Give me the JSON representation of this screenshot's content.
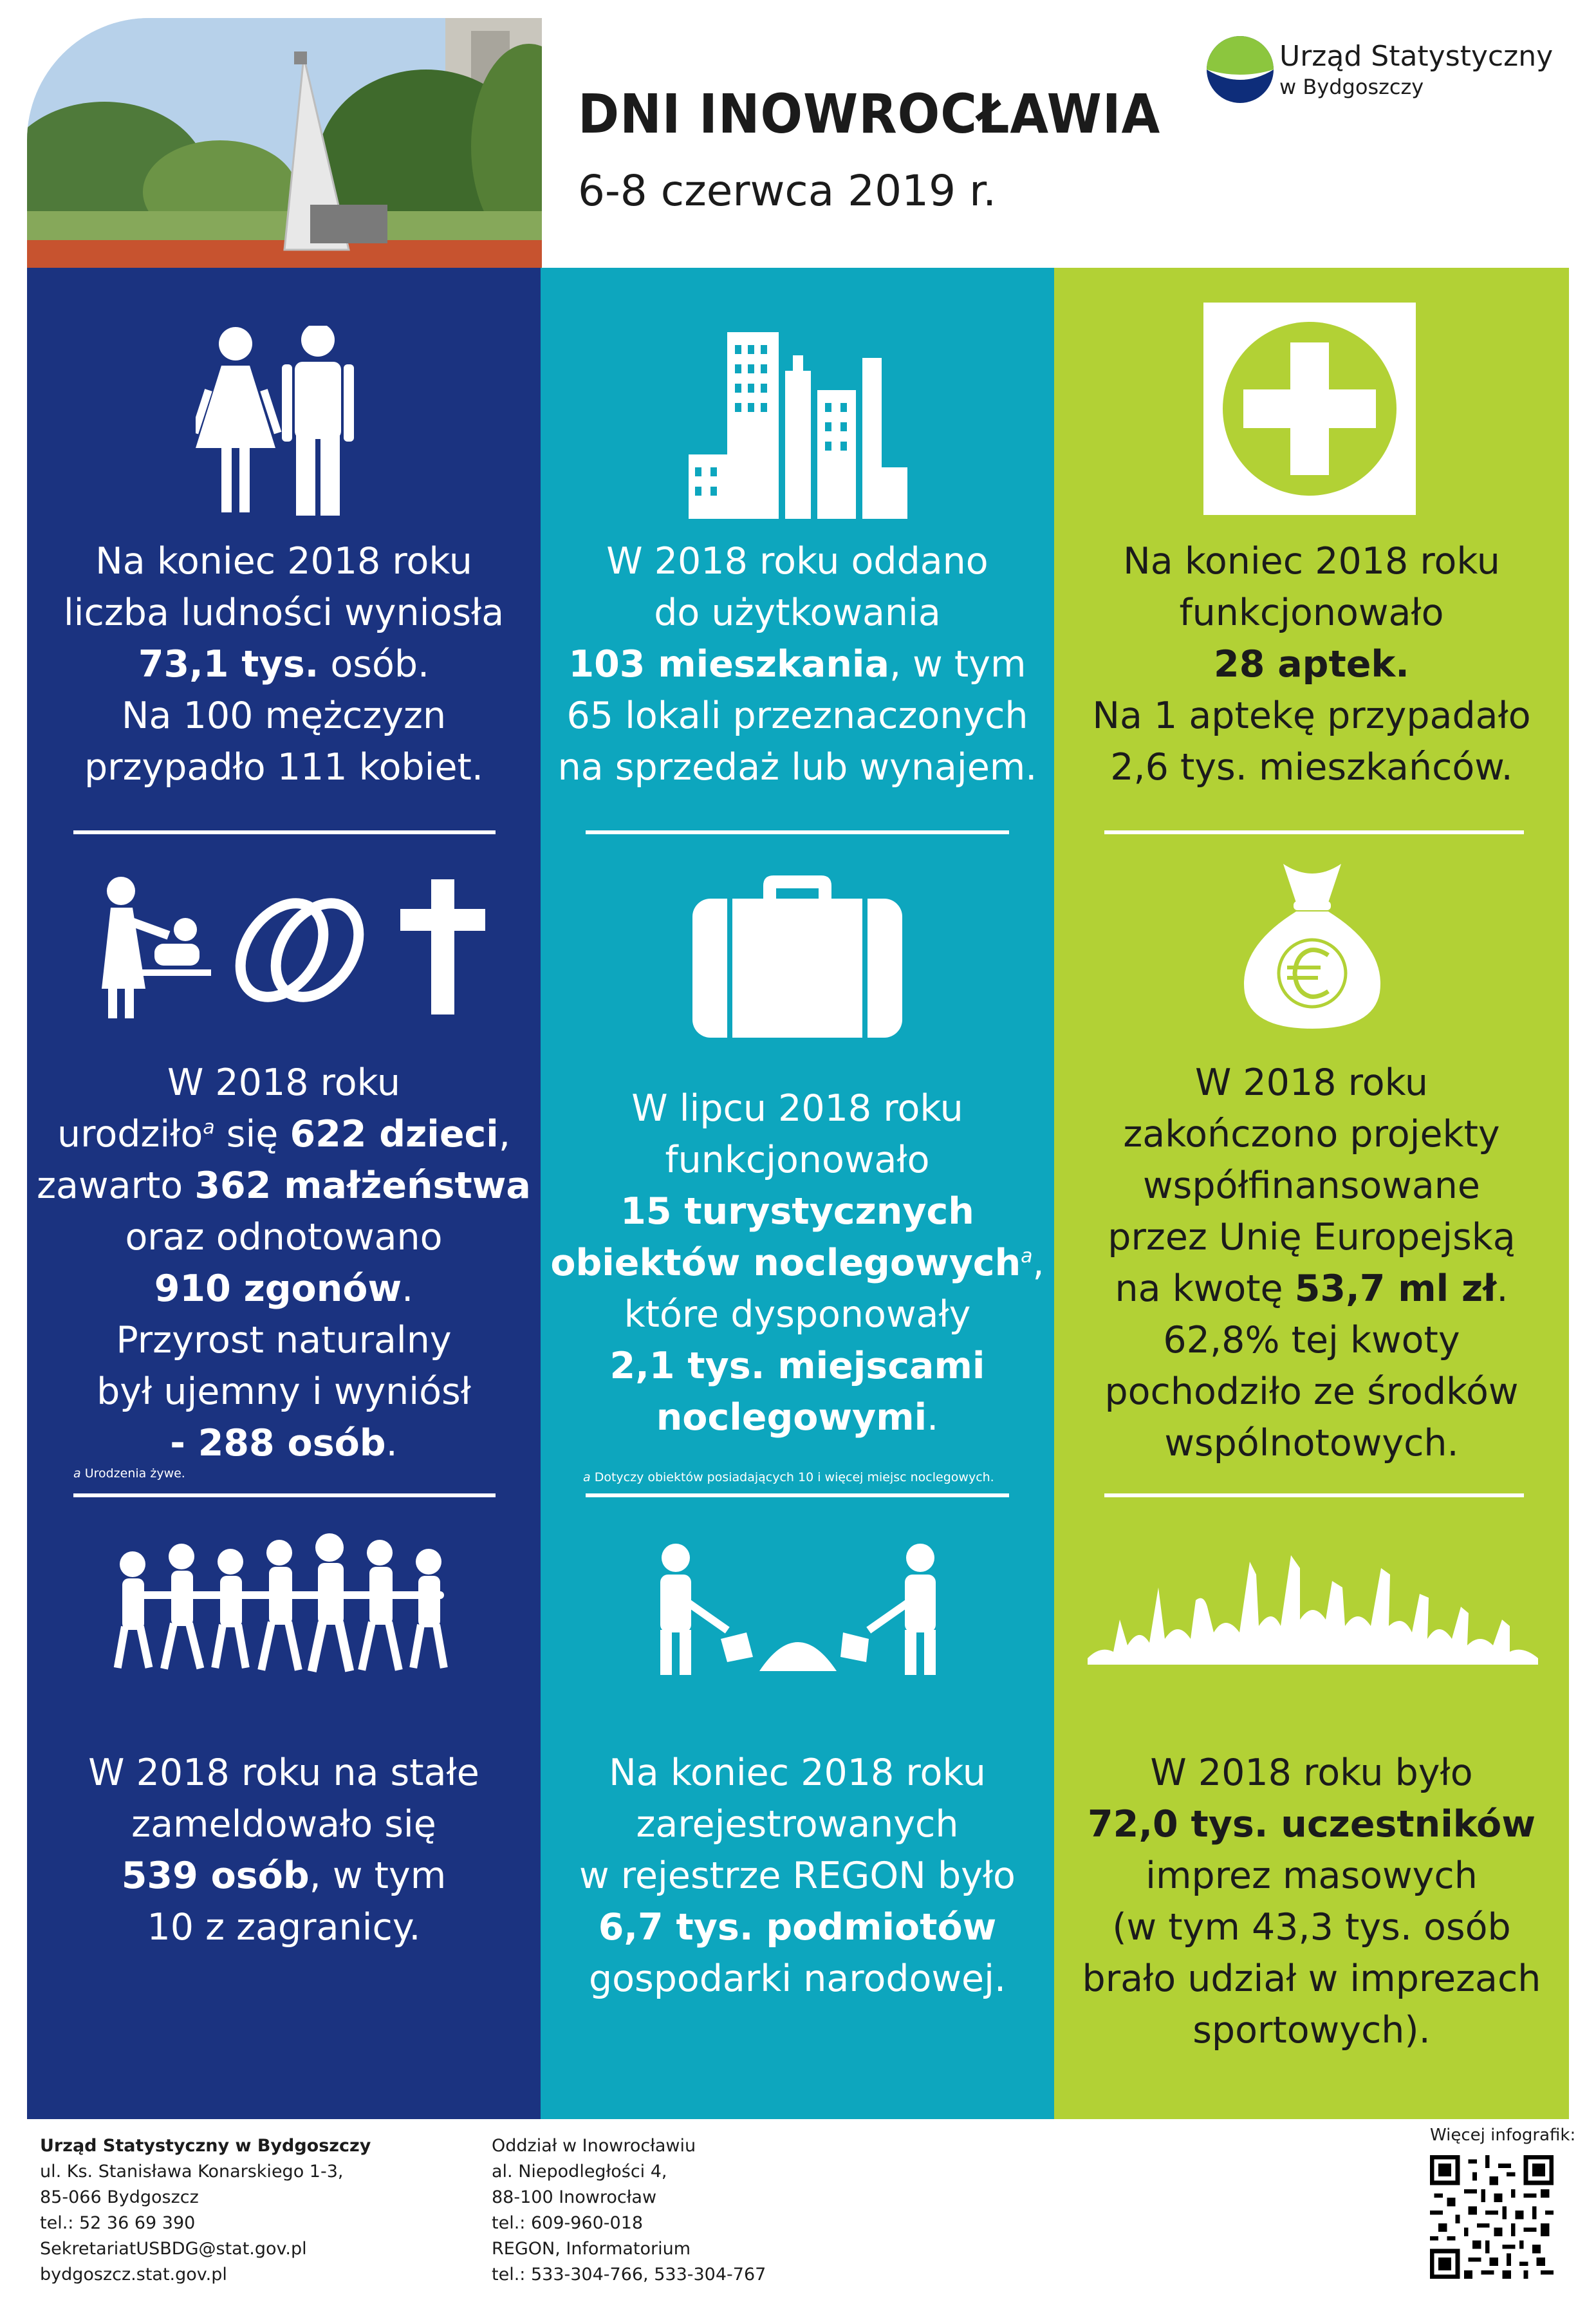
{
  "header": {
    "title": "DNI INOWROCŁAWIA",
    "subtitle": "6-8 czerwca 2019 r.",
    "logo_line1": "Urząd Statystyczny",
    "logo_line2": "w Bydgoszczy"
  },
  "colors": {
    "navy": "#1b3380",
    "teal": "#0da6be",
    "lime": "#b2d135",
    "dark_text": "#1b1b1b"
  },
  "col1": {
    "block1": {
      "icon": "man-woman-icon",
      "l1": "Na koniec 2018 roku",
      "l2": "liczba ludności wyniosła",
      "l3_bold": "73,1 tys.",
      "l3_rest": " osób.",
      "l4": "Na 100 mężczyzn",
      "l5": "przypadło 111 kobiet."
    },
    "block2": {
      "icons": [
        "baby-changing-icon",
        "wedding-rings-icon",
        "cross-icon"
      ],
      "l1": "W 2018 roku",
      "l2_a": "urodziło",
      "l2_sup": "a",
      "l2_b": " się ",
      "l2_bold": "622 dzieci",
      "l2_c": ",",
      "l3_a": "zawarto ",
      "l3_bold": "362 małżeństwa",
      "l4": "oraz odnotowano",
      "l5_bold": "910 zgonów",
      "l5_rest": ".",
      "l6": "Przyrost naturalny",
      "l7": "był ujemny i wyniósł",
      "l8_bold": "- 288 osób",
      "l8_rest": ".",
      "footnote_mark": "a",
      "footnote": " Urodzenia żywe."
    },
    "block3": {
      "icon": "walking-people-icon",
      "l1": "W 2018 roku na stałe",
      "l2": "zameldowało się",
      "l3_bold": "539 osób",
      "l3_rest": ", w tym",
      "l4": "10 z zagranicy."
    }
  },
  "col2": {
    "block1": {
      "icon": "buildings-icon",
      "l1": "W 2018 roku oddano",
      "l2": "do użytkowania",
      "l3_bold": "103 mieszkania",
      "l3_rest": ", w tym",
      "l4": "65 lokali przeznaczonych",
      "l5": "na sprzedaż lub wynajem."
    },
    "block2": {
      "icon": "suitcase-icon",
      "l1": "W lipcu 2018 roku",
      "l2": "funkcjonowało",
      "l3_bold": "15  turystycznych",
      "l4_bold": "obiektów noclegowych",
      "l4_sup": "a",
      "l4_rest": ",",
      "l5": "które dysponowały",
      "l6_bold": "2,1 tys. miejscami",
      "l7_bold": "noclegowymi",
      "l7_rest": ".",
      "footnote_mark": "a",
      "footnote": " Dotyczy obiektów posiadających 10 i więcej miejsc noclegowych."
    },
    "block3": {
      "icon": "workers-shoveling-icon",
      "l1": "Na koniec 2018 roku",
      "l2": "zarejestrowanych",
      "l3": "w rejestrze REGON było",
      "l4_bold": "6,7 tys. podmiotów",
      "l5": "gospodarki narodowej."
    }
  },
  "col3": {
    "block1": {
      "icon": "pharmacy-cross-icon",
      "l1": "Na koniec 2018 roku",
      "l2": "funkcjonowało",
      "l3_bold": "28 aptek.",
      "l4": "Na 1 aptekę przypadało",
      "l5": "2,6 tys. mieszkańców."
    },
    "block2": {
      "icon": "euro-money-bag-icon",
      "l1": "W 2018 roku",
      "l2": "zakończono projekty",
      "l3": "współfinansowane",
      "l4": "przez Unię Europejską",
      "l5_a": "na kwotę ",
      "l5_bold": "53,7 ml zł",
      "l5_rest": ".",
      "l6": "62,8% tej kwoty",
      "l7": "pochodziło ze środków",
      "l8": "wspólnotowych."
    },
    "block3": {
      "icon": "crowd-icon",
      "l1": "W 2018 roku było",
      "l2_bold": "72,0 tys. uczestników",
      "l3": "imprez masowych",
      "l4": "(w tym 43,3 tys. osób",
      "l5": "brało udział w imprezach",
      "l6": "sportowych)."
    }
  },
  "footer": {
    "left": {
      "org": "Urząd Statystyczny w Bydgoszczy",
      "street": "ul. Ks. Stanisława Konarskiego 1-3,",
      "city": "85-066 Bydgoszcz",
      "tel": "tel.: 52 36 69 390",
      "email": "SekretariatUSBDG@stat.gov.pl",
      "web": "bydgoszcz.stat.gov.pl"
    },
    "mid": {
      "branch": "Oddział w Inowrocławiu",
      "street": "al. Niepodległości 4,",
      "city": "88-100 Inowrocław",
      "tel": "tel.: 609-960-018",
      "regon": "REGON, Informatorium",
      "tel2": "tel.: 533-304-766, 533-304-767"
    },
    "qr_label": "Więcej infografik:"
  }
}
